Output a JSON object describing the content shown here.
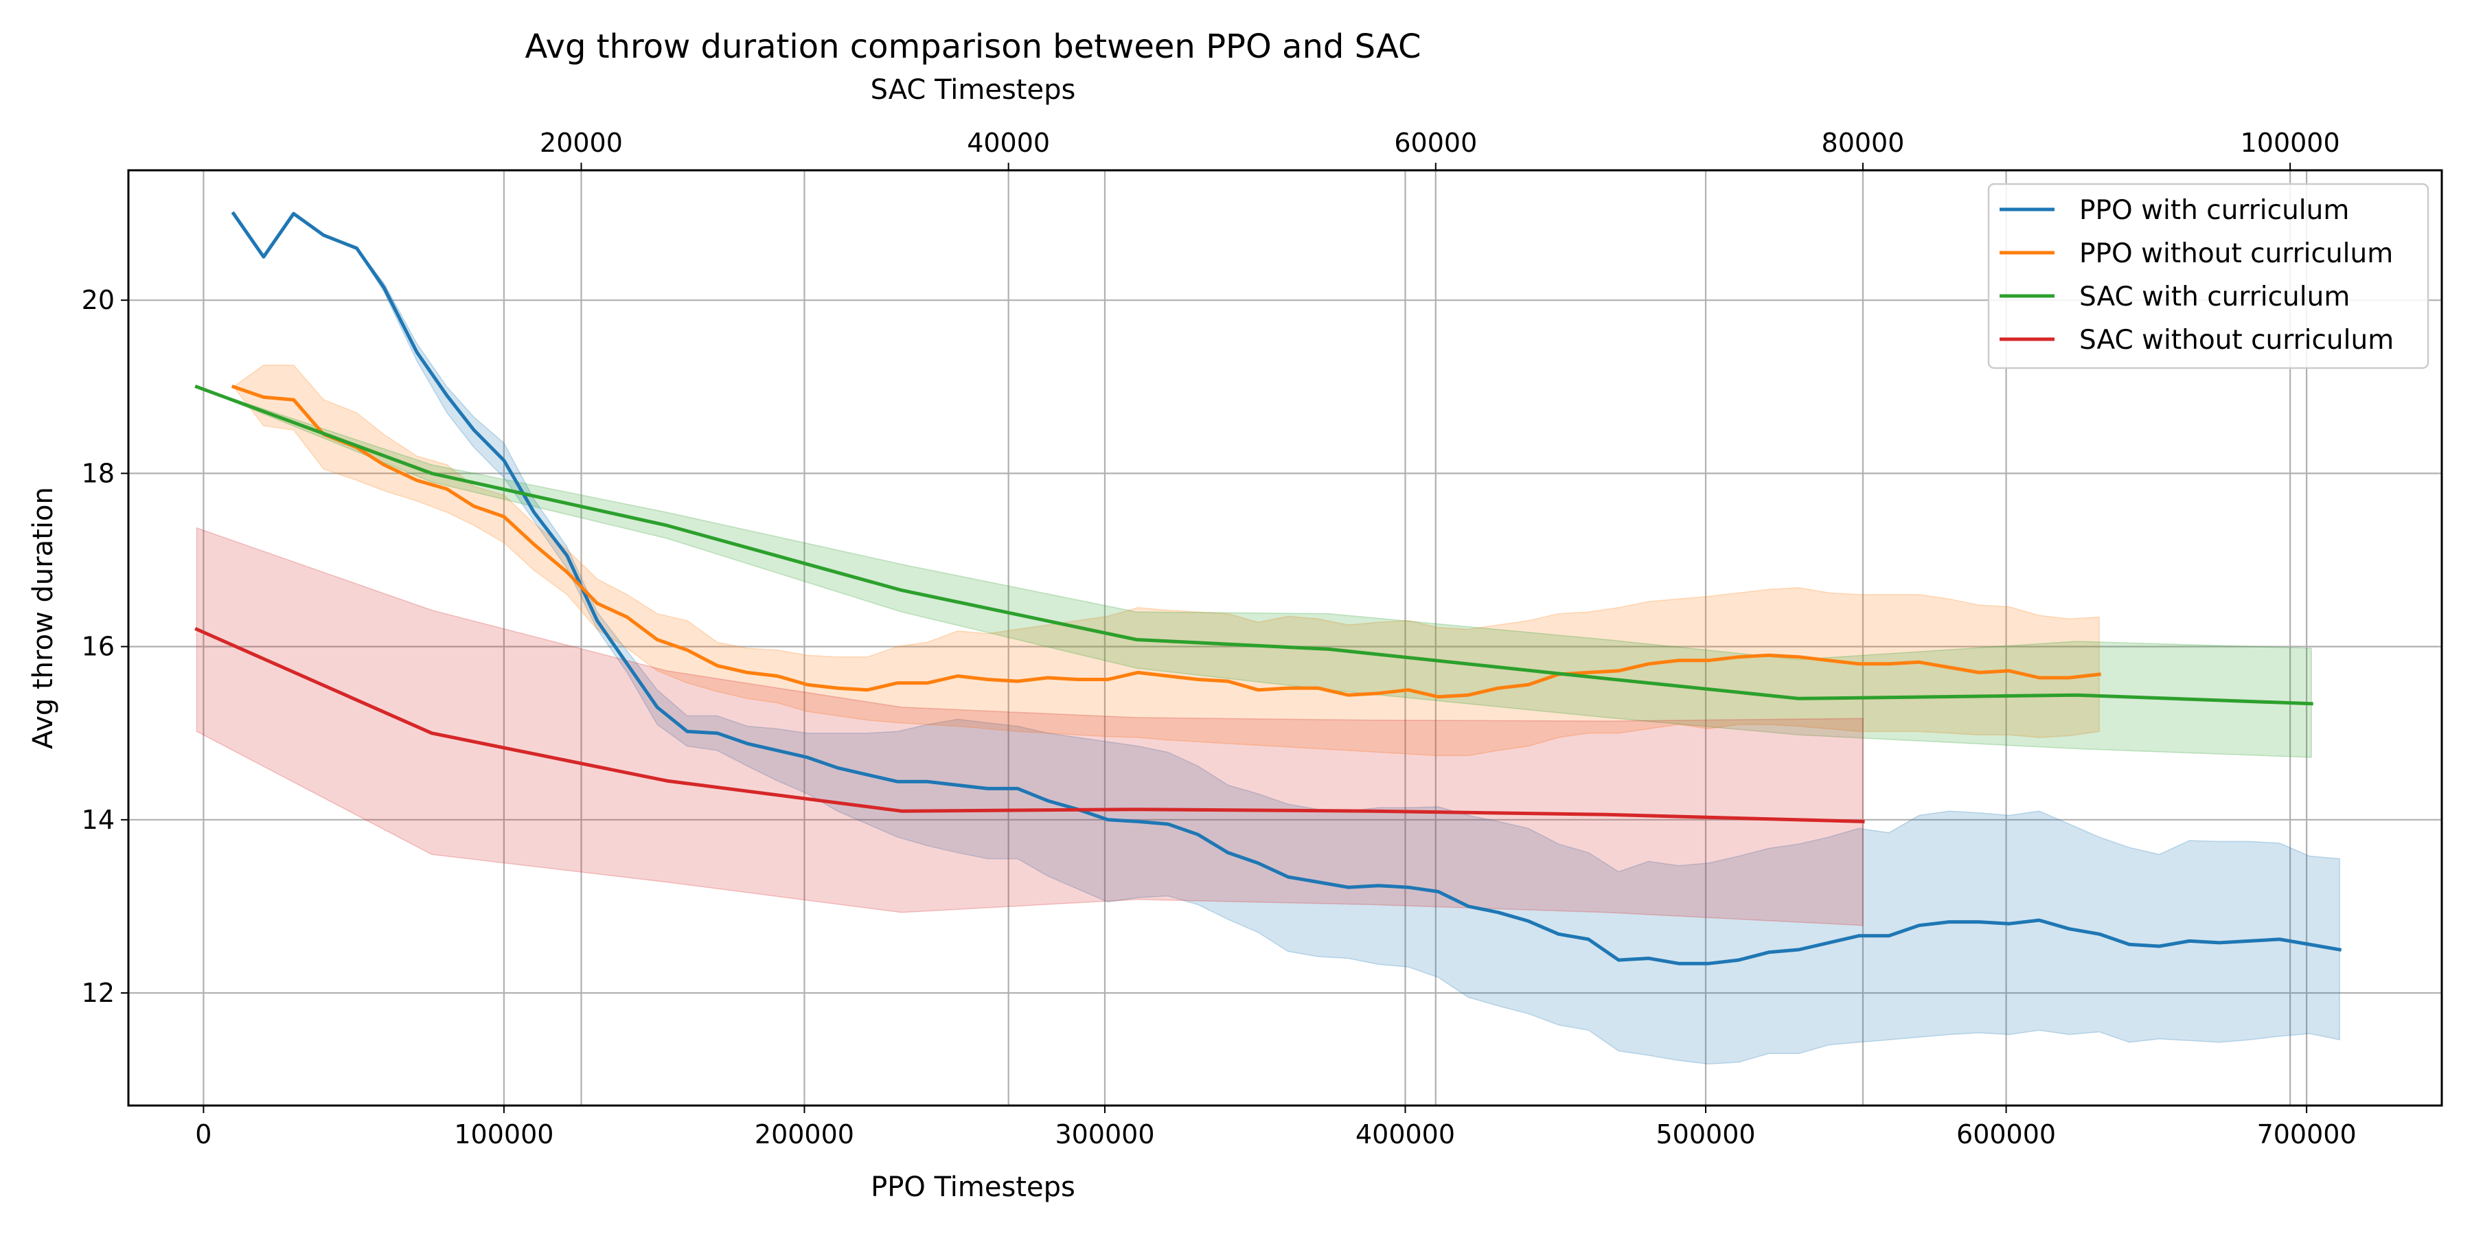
{
  "chart_data": {
    "type": "line",
    "title": "Avg throw duration comparison between PPO and SAC",
    "xlabel": "PPO Timesteps",
    "x2label": "SAC Timesteps",
    "ylabel": "Avg throw duration",
    "xlim": [
      -25000,
      745000
    ],
    "x2lim": [
      -1200,
      107100
    ],
    "ylim": [
      10.7,
      21.5
    ],
    "xticks": [
      0,
      100000,
      200000,
      300000,
      400000,
      500000,
      600000,
      700000
    ],
    "x2ticks": [
      20000,
      40000,
      60000,
      80000,
      100000
    ],
    "yticks": [
      12,
      14,
      16,
      18,
      20
    ],
    "grid": true,
    "legend_position": "top-right",
    "series": [
      {
        "name": "PPO with curriculum",
        "axis": "ppo",
        "color": "#1f77b4",
        "x": [
          10000,
          20000,
          30000,
          40000,
          51000,
          60000,
          71000,
          81000,
          90000,
          100000,
          110000,
          121000,
          131000,
          141000,
          151000,
          161000,
          171000,
          181000,
          191000,
          201000,
          211000,
          221000,
          231000,
          241000,
          251000,
          261000,
          271000,
          281000,
          291000,
          301000,
          311000,
          321000,
          331000,
          341000,
          351000,
          361000,
          371000,
          381000,
          391000,
          401000,
          411000,
          421000,
          431000,
          441000,
          451000,
          461000,
          471000,
          481000,
          491000,
          501000,
          511000,
          521000,
          531000,
          541000,
          551000,
          561000,
          571000,
          581000,
          591000,
          601000,
          611000,
          621000,
          631000,
          641000,
          651000,
          661000,
          671000,
          681000,
          691000,
          701000,
          711000
        ],
        "y": [
          21.0,
          20.5,
          21.0,
          20.75,
          20.6,
          20.15,
          19.4,
          18.9,
          18.5,
          18.15,
          17.55,
          17.05,
          16.3,
          15.8,
          15.3,
          15.02,
          15.0,
          14.88,
          14.8,
          14.72,
          14.6,
          14.52,
          14.44,
          14.44,
          14.4,
          14.36,
          14.36,
          14.22,
          14.12,
          14.0,
          13.98,
          13.95,
          13.83,
          13.62,
          13.5,
          13.34,
          13.28,
          13.22,
          13.24,
          13.22,
          13.17,
          13.0,
          12.93,
          12.83,
          12.68,
          12.62,
          12.38,
          12.4,
          12.34,
          12.34,
          12.38,
          12.47,
          12.5,
          12.58,
          12.66,
          12.66,
          12.78,
          12.82,
          12.82,
          12.8,
          12.84,
          12.74,
          12.68,
          12.56,
          12.54,
          12.6,
          12.58,
          12.6,
          12.62,
          12.56,
          12.5
        ],
        "lower": [
          21.0,
          20.5,
          21.0,
          20.75,
          20.6,
          20.1,
          19.3,
          18.7,
          18.3,
          17.95,
          17.45,
          16.9,
          16.2,
          15.7,
          15.1,
          14.85,
          14.8,
          14.62,
          14.45,
          14.3,
          14.1,
          13.95,
          13.8,
          13.7,
          13.62,
          13.55,
          13.55,
          13.35,
          13.2,
          13.05,
          13.1,
          13.12,
          13.02,
          12.85,
          12.7,
          12.48,
          12.42,
          12.4,
          12.33,
          12.3,
          12.18,
          11.95,
          11.85,
          11.76,
          11.63,
          11.57,
          11.33,
          11.28,
          11.22,
          11.18,
          11.2,
          11.3,
          11.3,
          11.4,
          11.43,
          11.46,
          11.49,
          11.52,
          11.54,
          11.52,
          11.57,
          11.52,
          11.55,
          11.43,
          11.47,
          11.45,
          11.43,
          11.46,
          11.5,
          11.53,
          11.46
        ],
        "upper": [
          21.0,
          20.5,
          21.0,
          20.75,
          20.6,
          20.2,
          19.5,
          19.0,
          18.65,
          18.35,
          17.7,
          17.15,
          16.4,
          15.95,
          15.5,
          15.2,
          15.2,
          15.08,
          15.05,
          15.0,
          15.0,
          15.0,
          15.02,
          15.1,
          15.16,
          15.12,
          15.08,
          15.0,
          14.95,
          14.9,
          14.85,
          14.78,
          14.62,
          14.4,
          14.3,
          14.18,
          14.12,
          14.1,
          14.14,
          14.14,
          14.15,
          14.05,
          13.98,
          13.9,
          13.72,
          13.62,
          13.4,
          13.52,
          13.47,
          13.5,
          13.58,
          13.67,
          13.72,
          13.8,
          13.9,
          13.85,
          14.05,
          14.1,
          14.08,
          14.05,
          14.1,
          13.95,
          13.8,
          13.68,
          13.6,
          13.76,
          13.75,
          13.75,
          13.73,
          13.58,
          13.55
        ]
      },
      {
        "name": "PPO without curriculum",
        "axis": "ppo",
        "color": "#ff7f0e",
        "x": [
          10000,
          20000,
          30000,
          40000,
          51000,
          60000,
          71000,
          81000,
          90000,
          100000,
          110000,
          121000,
          131000,
          141000,
          151000,
          161000,
          171000,
          181000,
          191000,
          201000,
          211000,
          221000,
          231000,
          241000,
          251000,
          261000,
          271000,
          281000,
          291000,
          301000,
          311000,
          321000,
          331000,
          341000,
          351000,
          361000,
          371000,
          381000,
          391000,
          401000,
          411000,
          421000,
          431000,
          441000,
          451000,
          461000,
          471000,
          481000,
          491000,
          501000,
          511000,
          521000,
          531000,
          541000,
          551000,
          561000,
          571000,
          581000,
          591000,
          601000,
          611000,
          621000,
          631000
        ],
        "y": [
          19.0,
          18.88,
          18.85,
          18.45,
          18.3,
          18.1,
          17.92,
          17.82,
          17.62,
          17.5,
          17.18,
          16.86,
          16.5,
          16.34,
          16.08,
          15.96,
          15.78,
          15.7,
          15.66,
          15.56,
          15.52,
          15.5,
          15.58,
          15.58,
          15.66,
          15.62,
          15.6,
          15.64,
          15.62,
          15.62,
          15.7,
          15.66,
          15.62,
          15.6,
          15.5,
          15.52,
          15.52,
          15.44,
          15.46,
          15.5,
          15.42,
          15.44,
          15.52,
          15.56,
          15.68,
          15.7,
          15.72,
          15.8,
          15.84,
          15.84,
          15.88,
          15.9,
          15.88,
          15.84,
          15.8,
          15.8,
          15.82,
          15.76,
          15.7,
          15.72,
          15.64,
          15.64,
          15.68
        ],
        "lower": [
          19.0,
          18.55,
          18.5,
          18.05,
          17.92,
          17.8,
          17.68,
          17.55,
          17.4,
          17.2,
          16.88,
          16.6,
          16.2,
          15.98,
          15.72,
          15.58,
          15.48,
          15.4,
          15.35,
          15.25,
          15.2,
          15.15,
          15.12,
          15.1,
          15.08,
          15.05,
          15.02,
          15.0,
          14.98,
          14.96,
          14.95,
          14.92,
          14.9,
          14.88,
          14.86,
          14.84,
          14.82,
          14.8,
          14.78,
          14.76,
          14.74,
          14.74,
          14.8,
          14.85,
          14.95,
          15.0,
          15.0,
          15.05,
          15.1,
          15.05,
          15.1,
          15.1,
          15.08,
          15.05,
          15.02,
          15.02,
          15.02,
          15.0,
          14.98,
          14.98,
          14.95,
          14.97,
          15.02
        ],
        "upper": [
          19.0,
          19.25,
          19.25,
          18.85,
          18.7,
          18.45,
          18.2,
          18.1,
          17.85,
          17.75,
          17.42,
          17.12,
          16.78,
          16.6,
          16.38,
          16.3,
          16.05,
          15.98,
          15.96,
          15.9,
          15.88,
          15.88,
          16.0,
          16.05,
          16.18,
          16.15,
          16.2,
          16.25,
          16.3,
          16.35,
          16.45,
          16.42,
          16.4,
          16.38,
          16.28,
          16.35,
          16.32,
          16.25,
          16.28,
          16.3,
          16.22,
          16.2,
          16.25,
          16.3,
          16.38,
          16.4,
          16.45,
          16.52,
          16.55,
          16.58,
          16.62,
          16.66,
          16.68,
          16.62,
          16.6,
          16.6,
          16.6,
          16.55,
          16.48,
          16.46,
          16.36,
          16.32,
          16.34
        ]
      },
      {
        "name": "SAC with curriculum",
        "axis": "sac",
        "color": "#2ca02c",
        "x": [
          2000,
          13000,
          24000,
          35000,
          46000,
          55000,
          68000,
          77000,
          90000,
          101000
        ],
        "y": [
          19.0,
          18.0,
          17.4,
          16.65,
          16.08,
          15.97,
          15.63,
          15.4,
          15.44,
          15.34
        ],
        "lower": [
          19.0,
          17.9,
          17.25,
          16.4,
          15.75,
          15.5,
          15.18,
          14.98,
          14.82,
          14.72
        ],
        "upper": [
          19.0,
          18.1,
          17.55,
          16.95,
          16.4,
          16.38,
          16.08,
          15.85,
          16.06,
          15.98
        ]
      },
      {
        "name": "SAC without curriculum",
        "axis": "sac",
        "color": "#d62728",
        "x": [
          2000,
          13000,
          24000,
          35000,
          46000,
          57000,
          68000,
          80000
        ],
        "y": [
          16.2,
          15.0,
          14.45,
          14.1,
          14.12,
          14.1,
          14.06,
          13.98
        ],
        "lower": [
          15.02,
          13.6,
          13.28,
          12.93,
          13.08,
          13.02,
          12.93,
          12.78
        ],
        "upper": [
          17.37,
          16.42,
          15.72,
          15.3,
          15.18,
          15.15,
          15.14,
          15.17
        ]
      }
    ]
  }
}
